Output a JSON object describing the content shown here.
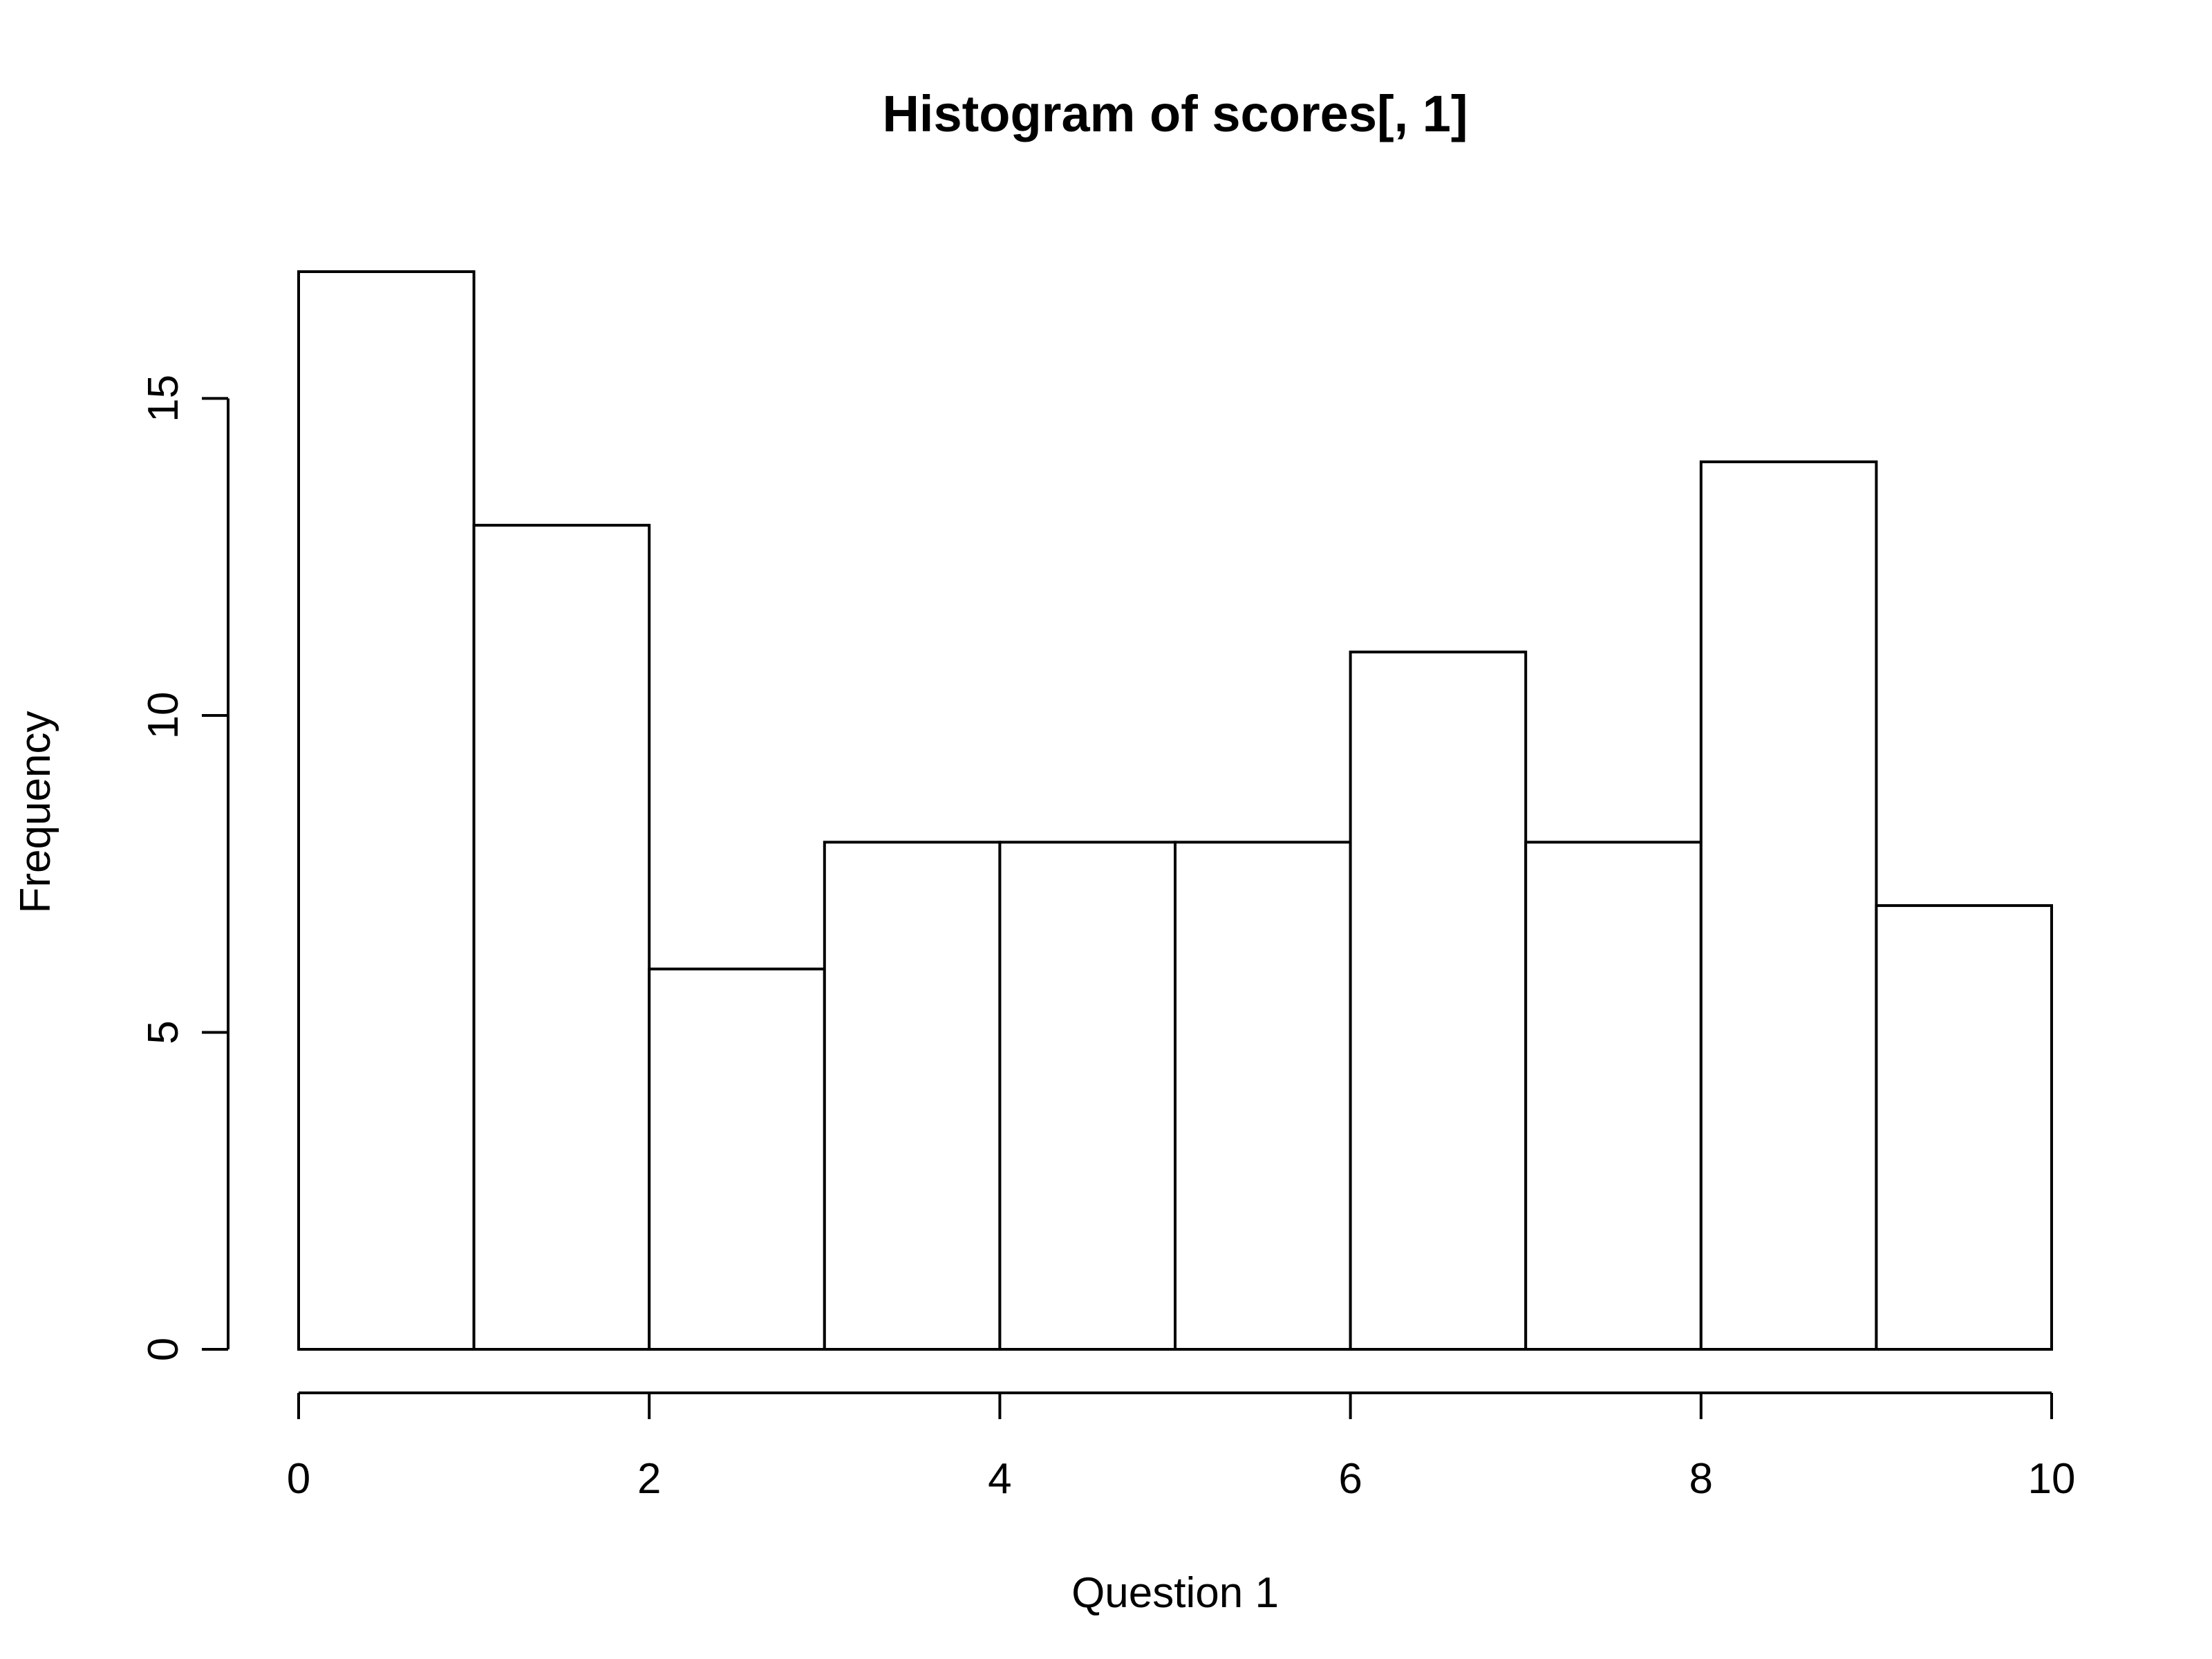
{
  "chart_data": {
    "type": "bar",
    "title": "Histogram of scores[, 1]",
    "xlabel": "Question 1",
    "ylabel": "Frequency",
    "bin_edges": [
      0,
      1,
      2,
      3,
      4,
      5,
      6,
      7,
      8,
      9,
      10
    ],
    "values": [
      17,
      13,
      6,
      8,
      8,
      8,
      11,
      8,
      14,
      7
    ],
    "xlim": [
      0,
      10
    ],
    "ylim": [
      0,
      17
    ],
    "x_ticks": [
      0,
      2,
      4,
      6,
      8,
      10
    ],
    "x_tick_labels": [
      "0",
      "2",
      "4",
      "6",
      "8",
      "10"
    ],
    "y_ticks": [
      0,
      5,
      10,
      15
    ],
    "y_tick_labels": [
      "0",
      "5",
      "10",
      "15"
    ],
    "grid": false,
    "legend": "none",
    "colors": {
      "bar_fill": "#ffffff",
      "bar_stroke": "#000000"
    }
  }
}
